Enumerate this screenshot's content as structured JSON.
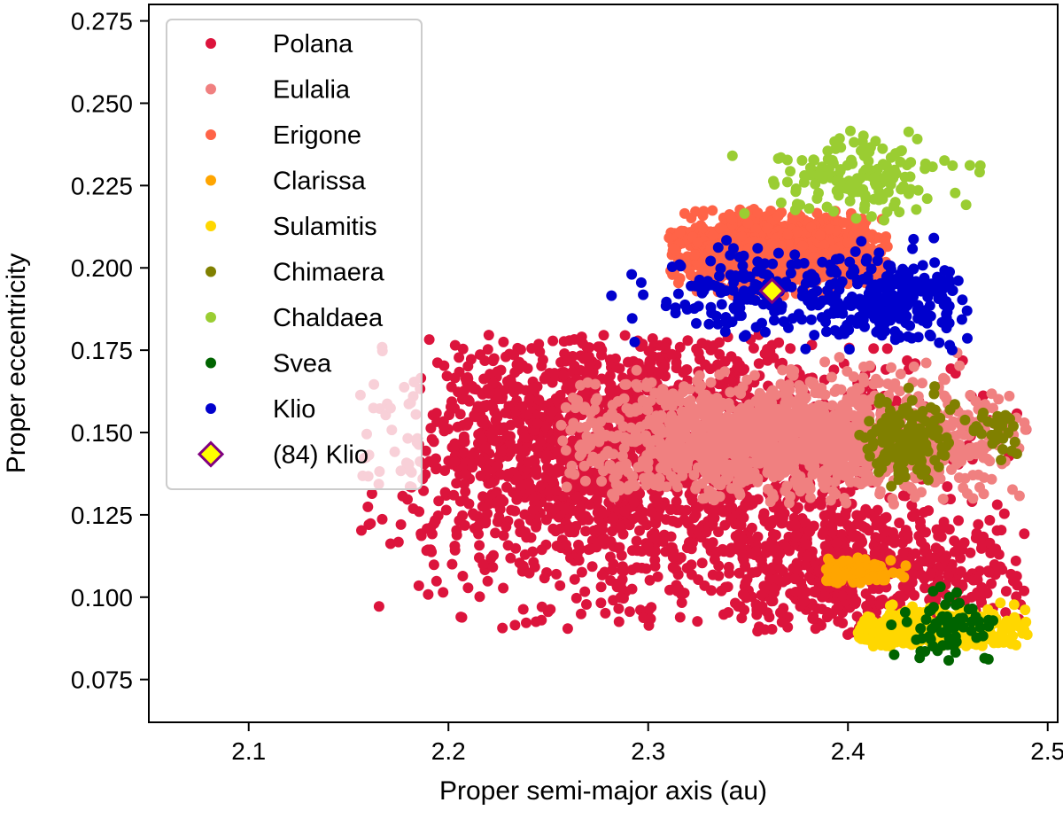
{
  "chart_data": {
    "type": "scatter",
    "title": "",
    "xlabel": "Proper semi-major axis (au)",
    "ylabel": "Proper eccentricity",
    "xlim": [
      2.05,
      2.505
    ],
    "ylim": [
      0.062,
      0.28
    ],
    "grid": false,
    "legend_position": "top-left",
    "x_ticks": [
      2.1,
      2.2,
      2.3,
      2.4,
      2.5
    ],
    "x_tick_labels": [
      "2.1",
      "2.2",
      "2.3",
      "2.4",
      "2.5"
    ],
    "y_ticks": [
      0.075,
      0.1,
      0.125,
      0.15,
      0.175,
      0.2,
      0.225,
      0.25,
      0.275
    ],
    "y_tick_labels": [
      "0.075",
      "0.100",
      "0.125",
      "0.150",
      "0.175",
      "0.200",
      "0.225",
      "0.250",
      "0.275"
    ],
    "series": [
      {
        "name": "Polana",
        "color": "#dc143c",
        "marker": "circle",
        "regions": [
          {
            "n": 1700,
            "a": [
              2.155,
              2.49
            ],
            "e": [
              0.09,
              0.18
            ],
            "center": [
              2.3,
              0.14
            ],
            "spread": [
              0.075,
              0.022
            ]
          },
          {
            "n": 500,
            "a": [
              2.34,
              2.49
            ],
            "e": [
              0.088,
              0.125
            ],
            "center": [
              2.41,
              0.108
            ],
            "spread": [
              0.045,
              0.012
            ]
          },
          {
            "n": 350,
            "a": [
              2.2,
              2.35
            ],
            "e": [
              0.12,
              0.18
            ],
            "center": [
              2.26,
              0.155
            ],
            "spread": [
              0.04,
              0.014
            ]
          }
        ]
      },
      {
        "name": "Eulalia",
        "color": "#f08080",
        "marker": "circle",
        "regions": [
          {
            "n": 1400,
            "a": [
              2.255,
              2.49
            ],
            "e": [
              0.128,
              0.175
            ],
            "center": [
              2.37,
              0.148
            ],
            "spread": [
              0.06,
              0.009
            ]
          }
        ]
      },
      {
        "name": "Erigone",
        "color": "#ff6347",
        "marker": "circle",
        "regions": [
          {
            "n": 1100,
            "a": [
              2.31,
              2.42
            ],
            "e": [
              0.19,
              0.218
            ],
            "center": [
              2.365,
              0.205
            ],
            "spread": [
              0.027,
              0.006
            ]
          }
        ]
      },
      {
        "name": "Clarissa",
        "color": "#ffa500",
        "marker": "circle",
        "regions": [
          {
            "n": 140,
            "a": [
              2.388,
              2.43
            ],
            "e": [
              0.104,
              0.112
            ],
            "center": [
              2.402,
              0.108
            ],
            "spread": [
              0.011,
              0.0022
            ]
          }
        ]
      },
      {
        "name": "Sulamitis",
        "color": "#ffd700",
        "marker": "circle",
        "regions": [
          {
            "n": 450,
            "a": [
              2.405,
              2.49
            ],
            "e": [
              0.085,
              0.102
            ],
            "center": [
              2.44,
              0.09
            ],
            "spread": [
              0.022,
              0.003
            ]
          }
        ]
      },
      {
        "name": "Chimaera",
        "color": "#808000",
        "marker": "circle",
        "regions": [
          {
            "n": 160,
            "a": [
              2.405,
              2.46
            ],
            "e": [
              0.133,
              0.165
            ],
            "center": [
              2.43,
              0.148
            ],
            "spread": [
              0.012,
              0.007
            ]
          },
          {
            "n": 30,
            "a": [
              2.46,
              2.49
            ],
            "e": [
              0.14,
              0.158
            ],
            "center": [
              2.475,
              0.15
            ],
            "spread": [
              0.007,
              0.004
            ]
          }
        ]
      },
      {
        "name": "Chaldaea",
        "color": "#9acd32",
        "marker": "circle",
        "regions": [
          {
            "n": 160,
            "a": [
              2.34,
              2.475
            ],
            "e": [
              0.21,
              0.244
            ],
            "center": [
              2.405,
              0.227
            ],
            "spread": [
              0.024,
              0.006
            ]
          }
        ]
      },
      {
        "name": "Svea",
        "color": "#006400",
        "marker": "circle",
        "regions": [
          {
            "n": 65,
            "a": [
              2.42,
              2.49
            ],
            "e": [
              0.079,
              0.105
            ],
            "center": [
              2.448,
              0.09
            ],
            "spread": [
              0.014,
              0.006
            ]
          }
        ]
      },
      {
        "name": "Klio",
        "color": "#0000cd",
        "marker": "circle",
        "regions": [
          {
            "n": 200,
            "a": [
              2.28,
              2.46
            ],
            "e": [
              0.175,
              0.21
            ],
            "center": [
              2.36,
              0.192
            ],
            "spread": [
              0.036,
              0.007
            ]
          },
          {
            "n": 200,
            "a": [
              2.39,
              2.46
            ],
            "e": [
              0.175,
              0.21
            ],
            "center": [
              2.425,
              0.19
            ],
            "spread": [
              0.018,
              0.008
            ]
          }
        ]
      },
      {
        "name": "(84) Klio",
        "color": "#ffff00",
        "edge_color": "#800080",
        "marker": "diamond",
        "points": [
          [
            2.362,
            0.193
          ]
        ]
      }
    ]
  }
}
